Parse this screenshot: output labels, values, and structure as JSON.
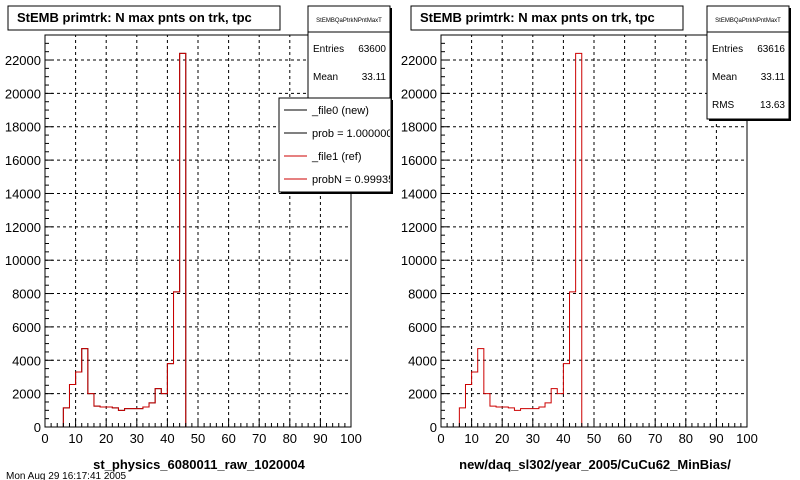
{
  "colors": {
    "new": "#000000",
    "ref": "#cc0000",
    "grid": "#000000",
    "frame": "#000000"
  },
  "footer_text": "Mon Aug 29 16:17:41 2005",
  "chart_data": [
    {
      "type": "histogram",
      "title": "StEMB primtrk: N max pnts on trk, tpc",
      "xlabel": "st_physics_6080011_raw_1020004",
      "ylabel": "",
      "xlim": [
        0,
        100
      ],
      "ylim": [
        0,
        23500
      ],
      "xticks": [
        0,
        10,
        20,
        30,
        40,
        50,
        60,
        70,
        80,
        90,
        100
      ],
      "yticks": [
        0,
        2000,
        4000,
        6000,
        8000,
        10000,
        12000,
        14000,
        16000,
        18000,
        20000,
        22000
      ],
      "grid": true,
      "bin_edges": [
        0,
        2,
        4,
        6,
        8,
        10,
        12,
        14,
        16,
        18,
        20,
        22,
        24,
        26,
        28,
        30,
        32,
        34,
        36,
        38,
        40,
        42,
        44,
        46,
        48,
        50,
        52,
        54,
        56,
        58,
        60,
        62,
        64,
        66,
        68,
        70,
        72,
        74,
        76,
        78,
        80,
        82,
        84,
        86,
        88,
        90,
        92,
        94,
        96,
        98,
        100
      ],
      "series": [
        {
          "name": "_file0 (new)",
          "color": "#000000",
          "values": [
            0,
            0,
            0,
            1150,
            2550,
            3300,
            4700,
            2000,
            1250,
            1200,
            1200,
            1150,
            1000,
            1100,
            1100,
            1100,
            1200,
            1450,
            2300,
            2000,
            3800,
            8100,
            22400,
            0,
            0,
            0,
            0,
            0,
            0,
            0,
            0,
            0,
            0,
            0,
            0,
            0,
            0,
            0,
            0,
            0,
            0,
            0,
            0,
            0,
            0,
            0,
            0,
            0,
            0,
            0
          ]
        },
        {
          "name": "_file1 (ref)",
          "color": "#cc0000",
          "values": [
            0,
            0,
            0,
            1150,
            2550,
            3300,
            4700,
            2000,
            1250,
            1200,
            1200,
            1150,
            1000,
            1100,
            1100,
            1100,
            1200,
            1450,
            2300,
            2000,
            3800,
            8100,
            22400,
            0,
            0,
            0,
            0,
            0,
            0,
            0,
            0,
            0,
            0,
            0,
            0,
            0,
            0,
            0,
            0,
            0,
            0,
            0,
            0,
            0,
            0,
            0,
            0,
            0,
            0,
            0
          ]
        }
      ],
      "stats": {
        "header": "StEMBQaPtrkNPntMaxT",
        "rows": [
          {
            "label": "Entries",
            "value": "63600"
          },
          {
            "label": "Mean",
            "value": "33.11"
          }
        ]
      },
      "legend": {
        "position": "top-right",
        "entries": [
          {
            "text": "_file0 (new)",
            "color": "#000000"
          },
          {
            "text": "prob = 1.000000",
            "color": "#000000"
          },
          {
            "text": "_file1 (ref)",
            "color": "#cc0000"
          },
          {
            "text": "probN = 0.999359",
            "color": "#cc0000"
          }
        ]
      }
    },
    {
      "type": "histogram",
      "title": "StEMB primtrk: N max pnts on trk, tpc",
      "xlabel": "new/daq_sl302/year_2005/CuCu62_MinBias/",
      "ylabel": "",
      "xlim": [
        0,
        100
      ],
      "ylim": [
        0,
        23500
      ],
      "xticks": [
        0,
        10,
        20,
        30,
        40,
        50,
        60,
        70,
        80,
        90,
        100
      ],
      "yticks": [
        0,
        2000,
        4000,
        6000,
        8000,
        10000,
        12000,
        14000,
        16000,
        18000,
        20000,
        22000
      ],
      "grid": true,
      "bin_edges": [
        0,
        2,
        4,
        6,
        8,
        10,
        12,
        14,
        16,
        18,
        20,
        22,
        24,
        26,
        28,
        30,
        32,
        34,
        36,
        38,
        40,
        42,
        44,
        46,
        48,
        50,
        52,
        54,
        56,
        58,
        60,
        62,
        64,
        66,
        68,
        70,
        72,
        74,
        76,
        78,
        80,
        82,
        84,
        86,
        88,
        90,
        92,
        94,
        96,
        98,
        100
      ],
      "series": [
        {
          "name": "",
          "color": "#cc0000",
          "values": [
            0,
            0,
            0,
            1150,
            2550,
            3300,
            4700,
            2000,
            1250,
            1200,
            1200,
            1150,
            1000,
            1100,
            1100,
            1100,
            1200,
            1450,
            2300,
            2000,
            3800,
            8100,
            22400,
            0,
            0,
            0,
            0,
            0,
            0,
            0,
            0,
            0,
            0,
            0,
            0,
            0,
            0,
            0,
            0,
            0,
            0,
            0,
            0,
            0,
            0,
            0,
            0,
            0,
            0,
            0
          ]
        }
      ],
      "stats": {
        "header": "StEMBQaPtrkNPntMaxT",
        "rows": [
          {
            "label": "Entries",
            "value": "63616"
          },
          {
            "label": "Mean",
            "value": "33.11"
          },
          {
            "label": "RMS",
            "value": "13.63"
          }
        ]
      },
      "legend": null
    }
  ]
}
